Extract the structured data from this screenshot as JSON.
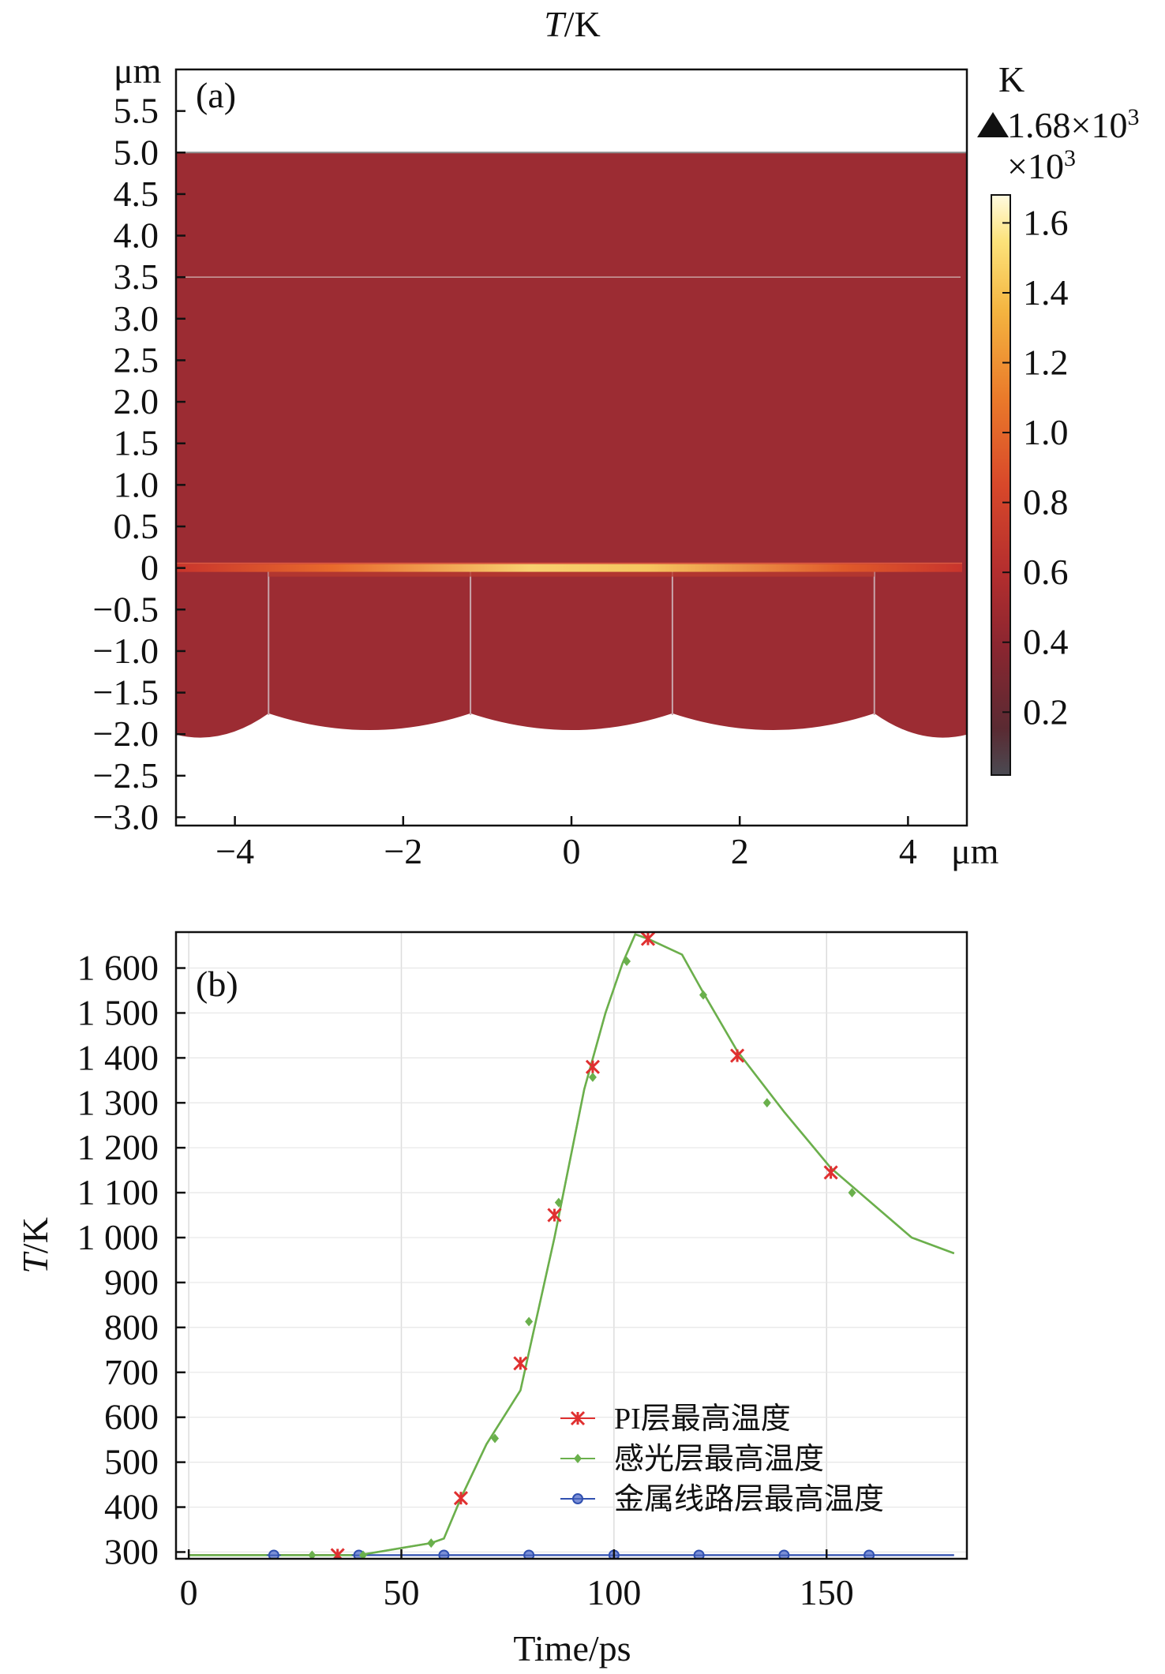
{
  "chart_data": [
    {
      "type": "heatmap",
      "panel_label": "(a)",
      "title": "T/K",
      "title_var": "T",
      "title_unit": "/K",
      "y_unit_label": "μm",
      "x_unit_label": "μm",
      "xlim": [
        -4.7,
        4.7
      ],
      "ylim": [
        -3.1,
        6.0
      ],
      "x_ticks": [
        -4,
        -2,
        0,
        2,
        4
      ],
      "x_tick_labels": [
        "−4",
        "−2",
        "0",
        "2",
        "4"
      ],
      "y_ticks": [
        5.5,
        5.0,
        4.5,
        4.0,
        3.5,
        3.0,
        2.5,
        2.0,
        1.5,
        1.0,
        0.5,
        0,
        -0.5,
        -1.0,
        -1.5,
        -2.0,
        -2.5,
        -3.0
      ],
      "y_tick_labels": [
        "5.5",
        "5.0",
        "4.5",
        "4.0",
        "3.5",
        "3.0",
        "2.5",
        "2.0",
        "1.5",
        "1.0",
        "0.5",
        "0",
        "−0.5",
        "−1.0",
        "−1.5",
        "−2.0",
        "−2.5",
        "−3.0"
      ],
      "colorbar": {
        "unit": "K",
        "max_label": "1.68×10",
        "max_label_exp": "3",
        "scale_label": "×10",
        "scale_label_exp": "3",
        "ticks": [
          1.6,
          1.4,
          1.2,
          1.0,
          0.8,
          0.6,
          0.4,
          0.2
        ],
        "tick_labels": [
          "1.6",
          "1.4",
          "1.2",
          "1.0",
          "0.8",
          "0.6",
          "0.4",
          "0.2"
        ],
        "range": [
          0.02,
          1.68
        ]
      },
      "domain": {
        "top_y": 5.0,
        "interface_y": 3.5,
        "hot_layer_y": 0,
        "base_y_edge": -1.75,
        "base_y_trough": -2.0,
        "lens_dividers_x": [
          -3.6,
          -1.2,
          1.2,
          3.6
        ],
        "x_extent": [
          -4.7,
          4.7
        ],
        "background_temperature": 0.3,
        "peak_temperature": 1.68
      },
      "colors": {
        "body": "#9c2c33",
        "hot_core": "#fff0a0",
        "hot_mid": "#f0a030",
        "hot_edge": "#d8502a"
      }
    },
    {
      "type": "line",
      "panel_label": "(b)",
      "xlabel": "Time/ps",
      "ylabel_var": "T",
      "ylabel_unit": "/K",
      "xlim": [
        -3,
        183
      ],
      "ylim": [
        285,
        1680
      ],
      "grid": true,
      "legend_position": "center-right",
      "x_ticks": [
        0,
        50,
        100,
        150
      ],
      "x_tick_labels": [
        "0",
        "50",
        "100",
        "150"
      ],
      "y_ticks": [
        1600,
        1500,
        1400,
        1300,
        1200,
        1100,
        1000,
        900,
        800,
        700,
        600,
        500,
        400,
        300
      ],
      "y_tick_labels": [
        "1 600",
        "1 500",
        "1 400",
        "1 300",
        "1 200",
        "1 100",
        "1 000",
        "900",
        "800",
        "700",
        "600",
        "500",
        "400",
        "300"
      ],
      "x": [
        0,
        20,
        40,
        57,
        60,
        64,
        70,
        78,
        86,
        93,
        98,
        102,
        105,
        108,
        116,
        121,
        129,
        140,
        151,
        170,
        180
      ],
      "series": [
        {
          "name": "PI层最高温度",
          "color": "#e03030",
          "marker": "asterisk",
          "values": [
            293,
            293,
            293,
            320,
            330,
            420,
            540,
            660,
            1000,
            1330,
            1500,
            1610,
            1675,
            1665,
            1630,
            1545,
            1415,
            1280,
            1155,
            1000,
            965
          ],
          "marker_x": [
            35,
            64,
            78,
            86,
            95,
            108,
            129,
            151
          ],
          "marker_y": [
            293,
            420,
            720,
            1050,
            1380,
            1665,
            1405,
            1145
          ]
        },
        {
          "name": "感光层最高温度",
          "color": "#6ab04c",
          "marker": "diamond",
          "values": [
            293,
            293,
            293,
            320,
            330,
            420,
            540,
            660,
            1000,
            1330,
            1500,
            1610,
            1675,
            1665,
            1630,
            1545,
            1415,
            1280,
            1155,
            1000,
            965
          ],
          "marker_x": [
            29,
            41,
            57,
            72,
            80,
            87,
            95,
            103,
            121,
            136,
            156
          ],
          "marker_y": [
            293,
            293,
            320,
            553,
            813,
            1078,
            1357,
            1615,
            1540,
            1300,
            1100
          ]
        },
        {
          "name": "金属线路层最高温度",
          "color": "#3050b0",
          "marker": "circle",
          "values": [
            293,
            293,
            293,
            293,
            293,
            293,
            293,
            293,
            293,
            293,
            293,
            293,
            293,
            293,
            293,
            293,
            293,
            293,
            293,
            293,
            293
          ],
          "marker_x": [
            20,
            40,
            60,
            80,
            100,
            120,
            140,
            160
          ],
          "marker_y": [
            293,
            293,
            293,
            293,
            293,
            293,
            293,
            293
          ]
        }
      ]
    }
  ]
}
